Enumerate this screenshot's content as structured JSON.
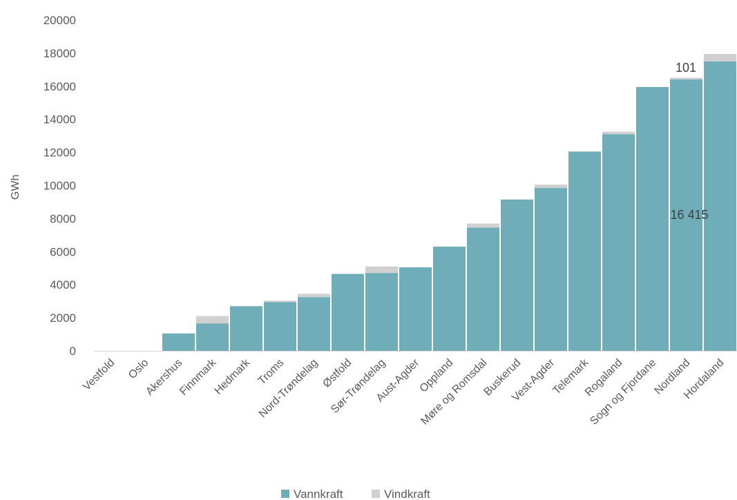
{
  "chart_data": {
    "type": "bar",
    "stacked": true,
    "ylabel": "GWh",
    "ylim": [
      0,
      20000
    ],
    "yticks": [
      0,
      2000,
      4000,
      6000,
      8000,
      10000,
      12000,
      14000,
      16000,
      18000,
      20000
    ],
    "categories": [
      "Vestfold",
      "Oslo",
      "Akershus",
      "Finnmark",
      "Hedmark",
      "Troms",
      "Nord-Trøndelag",
      "Østfold",
      "Sør-Trøndelag",
      "Aust-Agder",
      "Oppland",
      "Møre og Romsdal",
      "Buskerud",
      "Vest-Agder",
      "Telemark",
      "Rogaland",
      "Sogn og Fjordane",
      "Nordland",
      "Hordaland"
    ],
    "series": [
      {
        "name": "Vannkraft",
        "color": "#6fadb8",
        "values": [
          0,
          0,
          1050,
          1650,
          2700,
          2950,
          3250,
          4650,
          4700,
          5050,
          6300,
          7450,
          9150,
          9850,
          12050,
          13100,
          15950,
          16415,
          17500
        ]
      },
      {
        "name": "Vindkraft",
        "color": "#d0d0d0",
        "values": [
          0,
          0,
          0,
          450,
          0,
          80,
          200,
          0,
          400,
          0,
          0,
          250,
          0,
          200,
          0,
          150,
          0,
          101,
          450
        ]
      }
    ],
    "annotations": [
      "101",
      "16 415"
    ],
    "legend": "bottom",
    "grid": false
  }
}
